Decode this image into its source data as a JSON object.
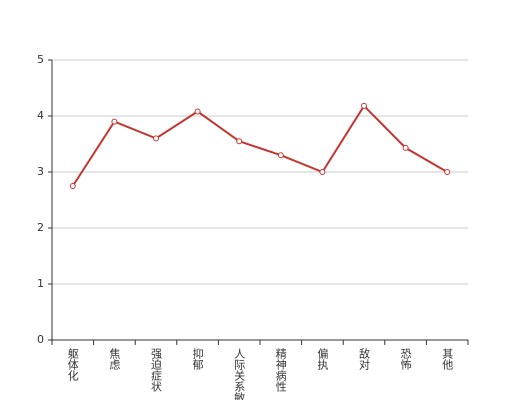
{
  "chart_data": {
    "type": "line",
    "categories": [
      "躯体化",
      "焦虑",
      "强迫症状",
      "抑郁",
      "人际关系敏感",
      "精神病性",
      "偏执",
      "敌对",
      "恐怖",
      "其他"
    ],
    "values": [
      2.75,
      3.9,
      3.6,
      4.08,
      3.55,
      3.3,
      3.0,
      4.18,
      3.43,
      3.0
    ],
    "color": "#c23531",
    "ylim": [
      0,
      5
    ],
    "yticks": [
      0,
      1,
      2,
      3,
      4,
      5
    ],
    "grid": true
  }
}
